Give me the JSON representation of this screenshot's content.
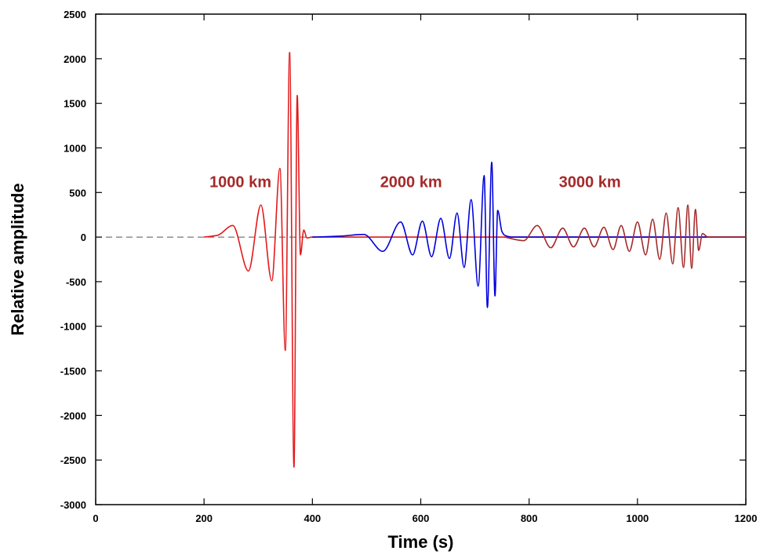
{
  "chart_data": {
    "type": "line",
    "title": "",
    "xlabel": "Time (s)",
    "ylabel": "Relative amplitude",
    "xlim": [
      0,
      1200
    ],
    "ylim": [
      -3000,
      2500
    ],
    "xticks": [
      0,
      200,
      400,
      600,
      800,
      1000,
      1200
    ],
    "yticks": [
      -3000,
      -2500,
      -2000,
      -1500,
      -1000,
      -500,
      0,
      500,
      1000,
      1500,
      2000,
      2500
    ],
    "grid": false,
    "zero_line": "dashed",
    "series": [
      {
        "name": "1000 km",
        "color": "#e41a1c",
        "x": [
          200,
          225,
          253,
          282,
          305,
          325,
          340,
          350,
          358,
          366,
          372,
          378,
          384,
          390,
          400,
          420,
          600,
          800,
          1000,
          1200
        ],
        "values": [
          0,
          20,
          130,
          -380,
          360,
          -490,
          770,
          -1270,
          2070,
          -2580,
          1590,
          -200,
          80,
          -10,
          0,
          0,
          0,
          0,
          0,
          0
        ]
      },
      {
        "name": "2000 km",
        "color": "#0000dd",
        "x": [
          400,
          450,
          495,
          530,
          563,
          585,
          603,
          620,
          637,
          653,
          667,
          680,
          693,
          706,
          717,
          723,
          731,
          737,
          742,
          750,
          755,
          770,
          800,
          1000,
          1200
        ],
        "values": [
          0,
          10,
          30,
          -160,
          170,
          -200,
          180,
          -220,
          210,
          -240,
          270,
          -340,
          420,
          -550,
          690,
          -790,
          840,
          -660,
          300,
          60,
          20,
          0,
          0,
          0,
          0
        ]
      },
      {
        "name": "3000 km",
        "color": "#a52a2a",
        "x": [
          755,
          790,
          815,
          840,
          862,
          882,
          902,
          920,
          938,
          955,
          970,
          985,
          1000,
          1015,
          1028,
          1041,
          1053,
          1065,
          1075,
          1085,
          1093,
          1100,
          1107,
          1113,
          1120,
          1130,
          1200
        ],
        "values": [
          0,
          -40,
          130,
          -120,
          100,
          -110,
          100,
          -110,
          110,
          -140,
          130,
          -160,
          170,
          -200,
          200,
          -250,
          270,
          -300,
          330,
          -340,
          360,
          -350,
          310,
          -150,
          40,
          0,
          0
        ]
      }
    ],
    "annotations": [
      {
        "text": "1000 km",
        "x": 210,
        "y": 560,
        "color": "#a52a2a"
      },
      {
        "text": "2000 km",
        "x": 525,
        "y": 560,
        "color": "#a52a2a"
      },
      {
        "text": "3000 km",
        "x": 855,
        "y": 560,
        "color": "#a52a2a"
      }
    ]
  }
}
